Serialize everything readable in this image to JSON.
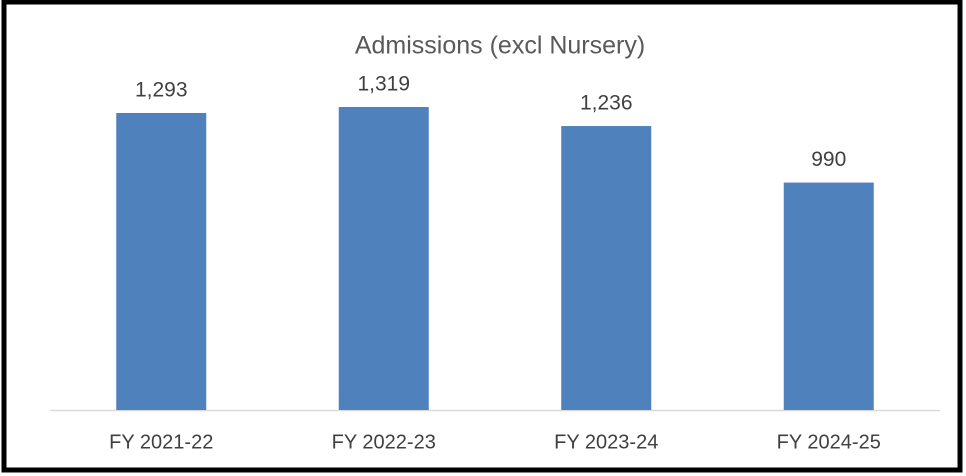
{
  "chart_data": {
    "type": "bar",
    "title": "Admissions (excl Nursery)",
    "categories": [
      "FY 2021-22",
      "FY 2022-23",
      "FY 2023-24",
      "FY 2024-25"
    ],
    "values": [
      1293,
      1319,
      1236,
      990
    ],
    "value_labels": [
      "1,293",
      "1,319",
      "1,236",
      "990"
    ],
    "color": "#4f81bd"
  }
}
